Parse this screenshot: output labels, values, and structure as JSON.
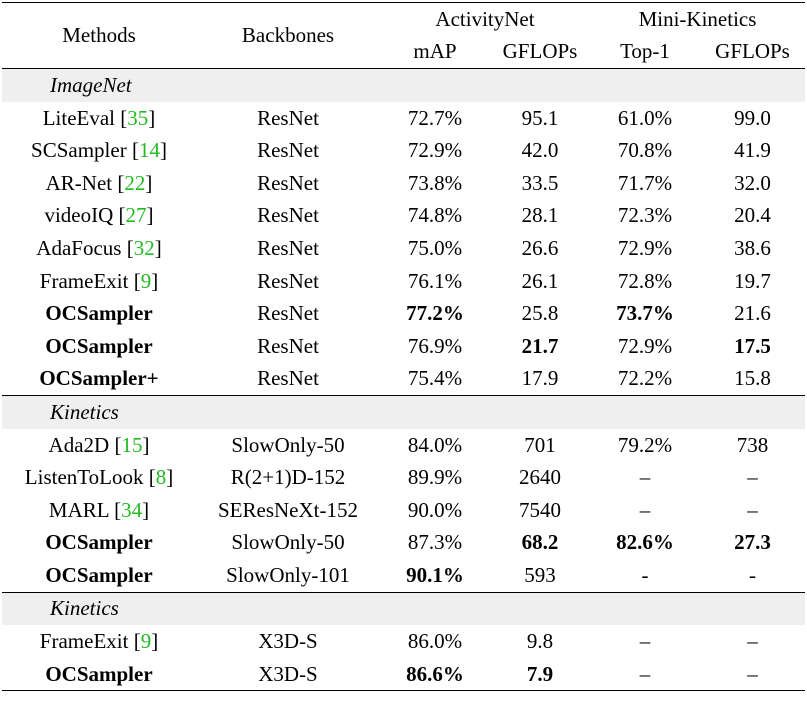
{
  "header": {
    "methods": "Methods",
    "backbones": "Backbones",
    "groups": [
      {
        "name": "ActivityNet",
        "columns": [
          "mAP",
          "GFLOPs"
        ]
      },
      {
        "name": "Mini-Kinetics",
        "columns": [
          "Top-1",
          "GFLOPs"
        ]
      }
    ]
  },
  "sections": [
    {
      "label": "ImageNet",
      "rows": [
        {
          "method": "LiteEval",
          "ref": "[35]",
          "backbone": "ResNet",
          "values": [
            "72.7%",
            "95.1",
            "61.0%",
            "99.0"
          ]
        },
        {
          "method": "SCSampler",
          "ref": "[14]",
          "backbone": "ResNet",
          "values": [
            "72.9%",
            "42.0",
            "70.8%",
            "41.9"
          ]
        },
        {
          "method": "AR-Net",
          "ref": "[22]",
          "backbone": "ResNet",
          "values": [
            "73.8%",
            "33.5",
            "71.7%",
            "32.0"
          ]
        },
        {
          "method": "videoIQ",
          "ref": "[27]",
          "backbone": "ResNet",
          "values": [
            "74.8%",
            "28.1",
            "72.3%",
            "20.4"
          ]
        },
        {
          "method": "AdaFocus",
          "ref": "[32]",
          "backbone": "ResNet",
          "values": [
            "75.0%",
            "26.6",
            "72.9%",
            "38.6"
          ]
        },
        {
          "method": "FrameExit",
          "ref": "[9]",
          "backbone": "ResNet",
          "values": [
            "76.1%",
            "26.1",
            "72.8%",
            "19.7"
          ]
        },
        {
          "method": "OCSampler",
          "backbone": "ResNet",
          "values": [
            "77.2%",
            "25.8",
            "73.7%",
            "21.6"
          ],
          "bold_method": true,
          "bold_values": [
            0,
            2
          ]
        },
        {
          "method": "OCSampler",
          "backbone": "ResNet",
          "values": [
            "76.9%",
            "21.7",
            "72.9%",
            "17.5"
          ],
          "bold_method": true,
          "bold_values": [
            1,
            3
          ]
        },
        {
          "method": "OCSampler+",
          "backbone": "ResNet",
          "values": [
            "75.4%",
            "17.9",
            "72.2%",
            "15.8"
          ],
          "bold_method": true,
          "bold_values": []
        }
      ]
    },
    {
      "label": "Kinetics",
      "rows": [
        {
          "method": "Ada2D",
          "ref": "[15]",
          "backbone": "SlowOnly-50",
          "values": [
            "84.0%",
            "701",
            "79.2%",
            "738"
          ]
        },
        {
          "method": "ListenToLook",
          "ref": "[8]",
          "backbone": "R(2+1)D-152",
          "values": [
            "89.9%",
            "2640",
            "–",
            "–"
          ]
        },
        {
          "method": "MARL",
          "ref": "[34]",
          "backbone": "SEResNeXt-152",
          "values": [
            "90.0%",
            "7540",
            "–",
            "–"
          ]
        },
        {
          "method": "OCSampler",
          "backbone": "SlowOnly-50",
          "values": [
            "87.3%",
            "68.2",
            "82.6%",
            "27.3"
          ],
          "bold_method": true,
          "bold_values": [
            1,
            2,
            3
          ]
        },
        {
          "method": "OCSampler",
          "backbone": "SlowOnly-101",
          "values": [
            "90.1%",
            "593",
            "-",
            "-"
          ],
          "bold_method": true,
          "bold_values": [
            0
          ]
        }
      ]
    },
    {
      "label": "Kinetics",
      "rows": [
        {
          "method": "FrameExit",
          "ref": "[9]",
          "backbone": "X3D-S",
          "values": [
            "86.0%",
            "9.8",
            "–",
            "–"
          ]
        },
        {
          "method": "OCSampler",
          "backbone": "X3D-S",
          "values": [
            "86.6%",
            "7.9",
            "–",
            "–"
          ],
          "bold_method": true,
          "bold_values": [
            0,
            1
          ]
        }
      ]
    }
  ]
}
